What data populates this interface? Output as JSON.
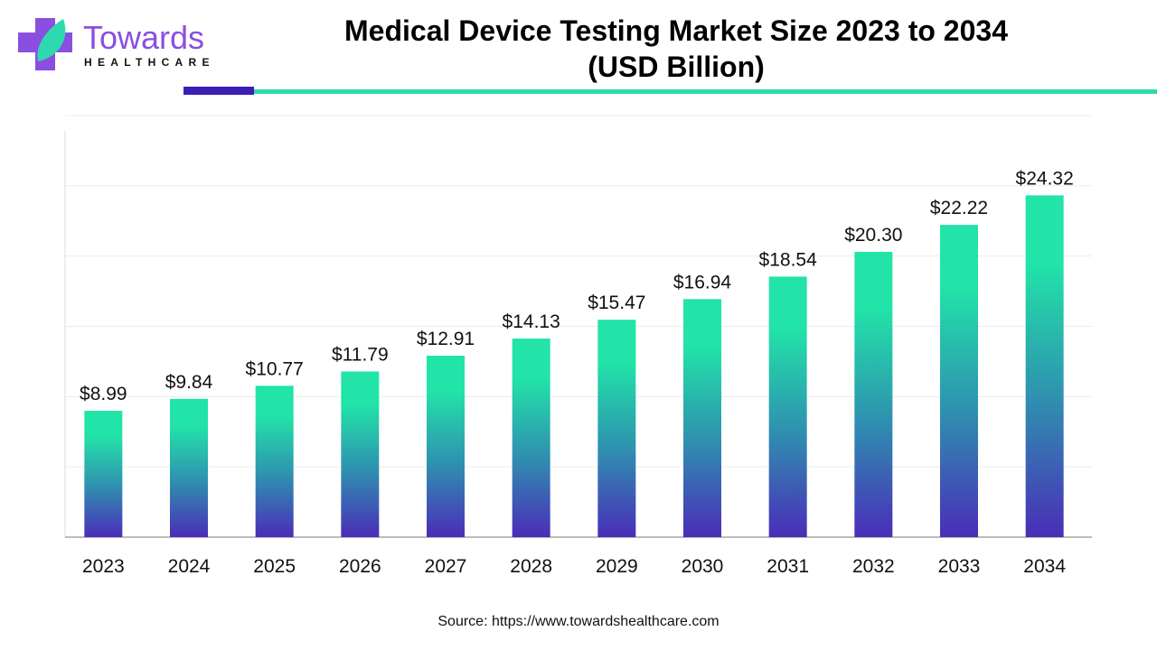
{
  "header": {
    "title_line1": "Medical Device Testing Market Size 2023 to 2034",
    "title_line2": "(USD Billion)"
  },
  "logo": {
    "brand": "Towards",
    "sub": "HEALTHCARE",
    "colors": {
      "purple": "#8a4fe0",
      "teal": "#2fd9b0"
    }
  },
  "source": "Source: https://www.towardshealthcare.com",
  "chart_data": {
    "type": "bar",
    "title": "Medical Device Testing Market Size 2023 to 2034 (USD Billion)",
    "categories": [
      "2023",
      "2024",
      "2025",
      "2026",
      "2027",
      "2028",
      "2029",
      "2030",
      "2031",
      "2032",
      "2033",
      "2034"
    ],
    "values": [
      8.99,
      9.84,
      10.77,
      11.79,
      12.91,
      14.13,
      15.47,
      16.94,
      18.54,
      20.3,
      22.22,
      24.32
    ],
    "labels": [
      "$8.99",
      "$9.84",
      "$10.77",
      "$11.79",
      "$12.91",
      "$14.13",
      "$15.47",
      "$16.94",
      "$18.54",
      "$20.30",
      "$22.22",
      "$24.32"
    ],
    "ylim": [
      0,
      30
    ],
    "grid": true,
    "ytick_step": 5,
    "bar_gradient": {
      "top": "#22e3a8",
      "bottom": "#4a2db8"
    }
  }
}
